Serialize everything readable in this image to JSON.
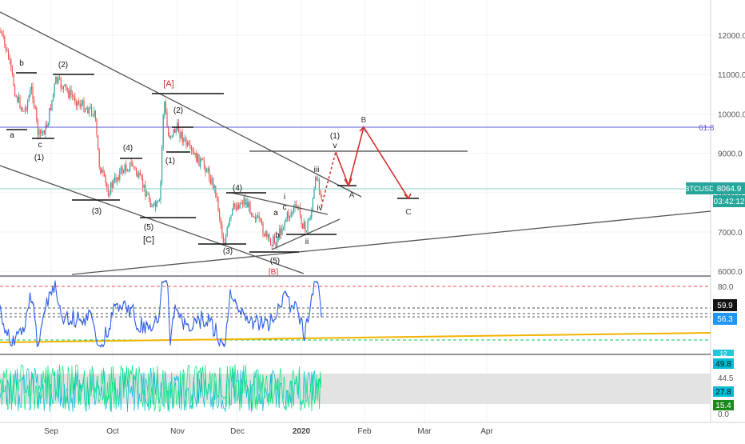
{
  "symbol": "BTCUSD",
  "price_label": "8064.9",
  "countdown": "03:42:12",
  "fib_label": "61.8",
  "colors": {
    "up": "#26a69a",
    "down": "#ef5350",
    "fib": "#5b5bd6",
    "price_line": "#26a69a",
    "wave_red": "#d32f2f",
    "rsi": "#2962ff",
    "trend_orange": "#f0b400",
    "osc_green": "#00e676",
    "osc_cyan": "#00bcd4"
  },
  "chart_data": {
    "type": "candlestick",
    "price_axis": {
      "ticks": [
        "12000.0",
        "11000.0",
        "10000.0",
        "9000.0",
        "8000.0",
        "7000.0",
        "6000.0"
      ]
    },
    "time_axis": {
      "ticks": [
        "Sep",
        "Oct",
        "Nov",
        "Dec",
        "2020",
        "Feb",
        "Mar",
        "Apr"
      ]
    },
    "wave_labels": {
      "a": "a",
      "b": "b",
      "c": "c",
      "one": "(1)",
      "two": "(2)",
      "three": "(3)",
      "four": "(4)",
      "five": "(5)",
      "C_bracket": "[C]",
      "A_bracket": "[A]",
      "B_bracket": "[B]",
      "i": "i",
      "ii": "ii",
      "iii": "iii",
      "iv": "iv",
      "v": "v",
      "A": "A",
      "B": "B",
      "C": "C"
    },
    "rsi_panel": {
      "ticks": [
        "80.0"
      ],
      "badges": [
        "59.9",
        "56.3"
      ]
    },
    "osc_panel": {
      "ticks": [
        "49.8",
        "44.5",
        "27.8",
        "15.4",
        "0.0"
      ],
      "top_badge": "12"
    }
  }
}
